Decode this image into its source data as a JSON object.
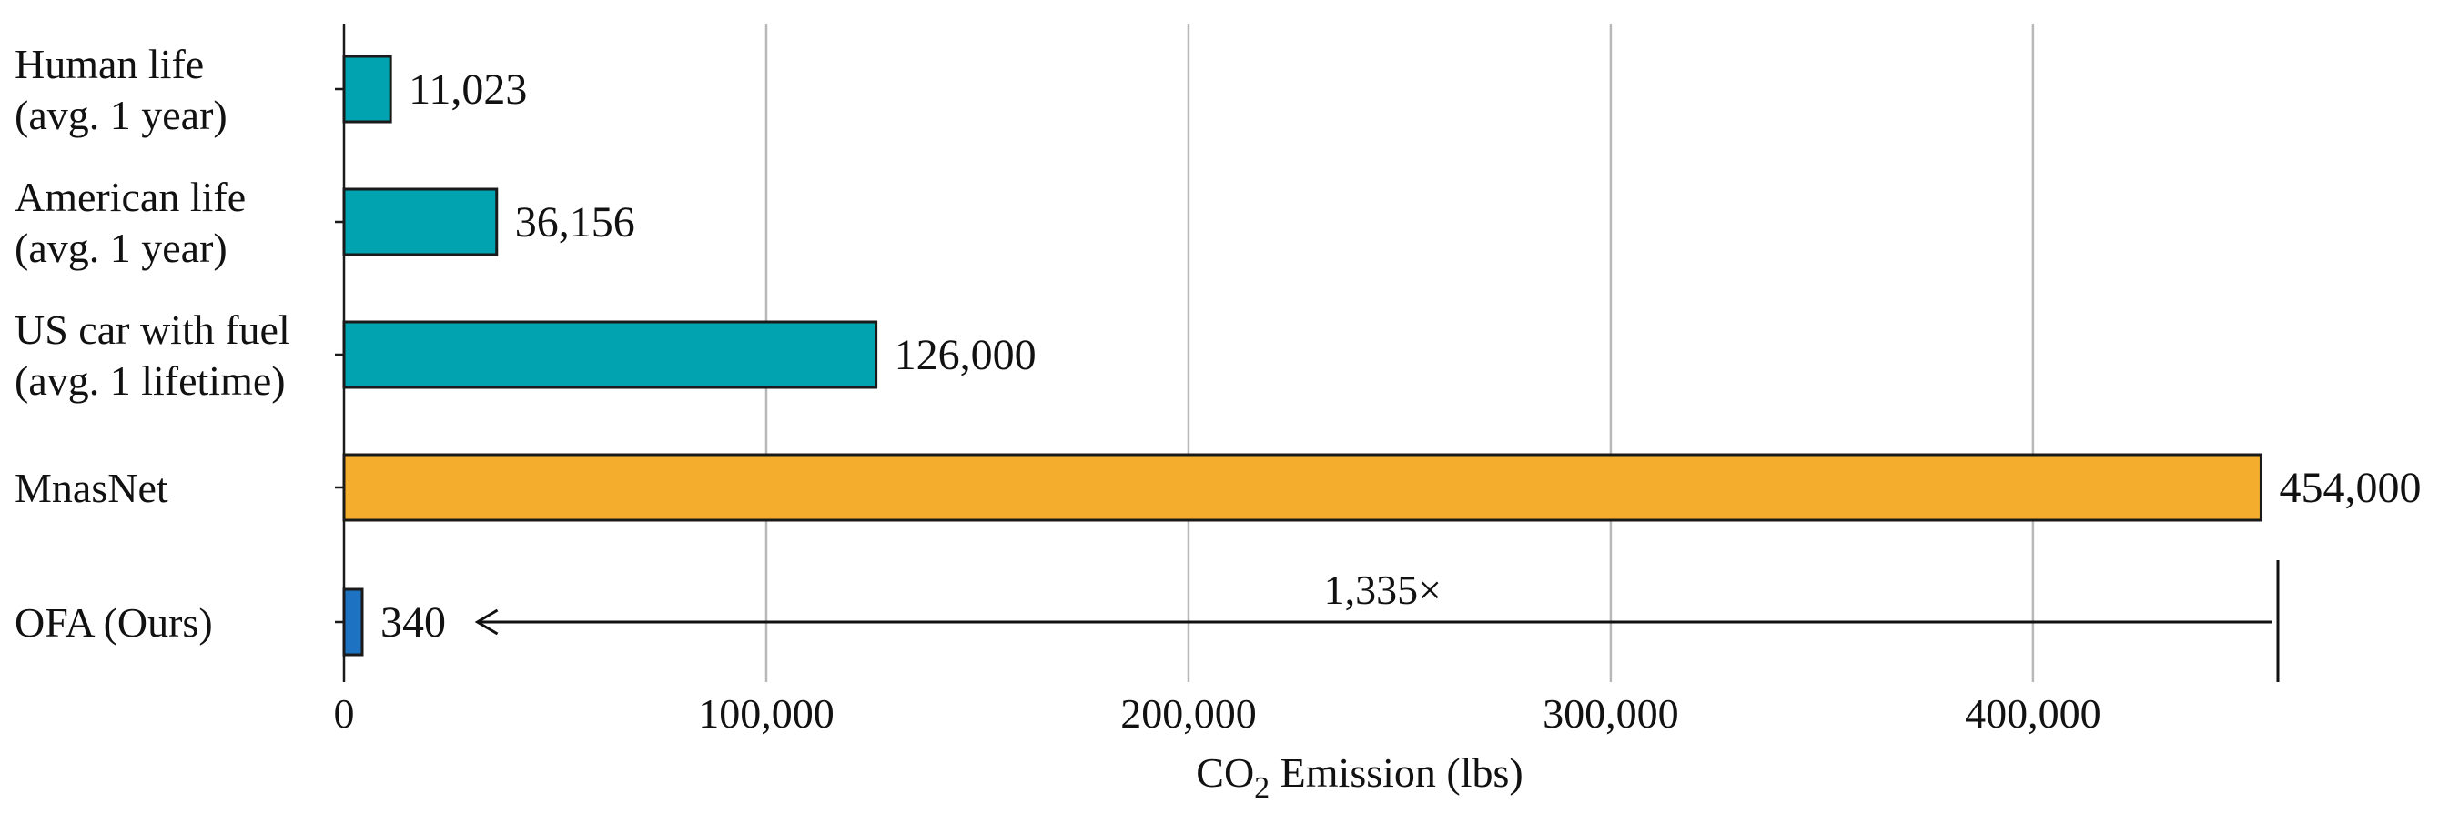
{
  "chart_data": {
    "type": "bar",
    "orientation": "horizontal",
    "categories": [
      [
        "Human life",
        "(avg. 1 year)"
      ],
      [
        "American life",
        "(avg. 1 year)"
      ],
      [
        "US car with fuel",
        "(avg. 1 lifetime)"
      ],
      [
        "MnasNet"
      ],
      [
        "OFA (Ours)"
      ]
    ],
    "values": [
      11023,
      36156,
      126000,
      454000,
      340
    ],
    "value_labels": [
      "11,023",
      "36,156",
      "126,000",
      "454,000",
      "340"
    ],
    "bar_colors": [
      "#00A3AF",
      "#00A3AF",
      "#00A3AF",
      "#F5AD2D",
      "#1E72C2"
    ],
    "xlim": [
      0,
      458000
    ],
    "x_ticks": [
      0,
      100000,
      200000,
      300000,
      400000
    ],
    "x_tick_labels": [
      "0",
      "100,000",
      "200,000",
      "300,000",
      "400,000"
    ],
    "xlabel": {
      "prefix": "CO",
      "subscript": "2",
      "suffix": " Emission (lbs)"
    },
    "grid": "vertical",
    "annotation": {
      "text": "1,335×",
      "from_value": 458000,
      "to_value": 340,
      "row": 4
    }
  }
}
